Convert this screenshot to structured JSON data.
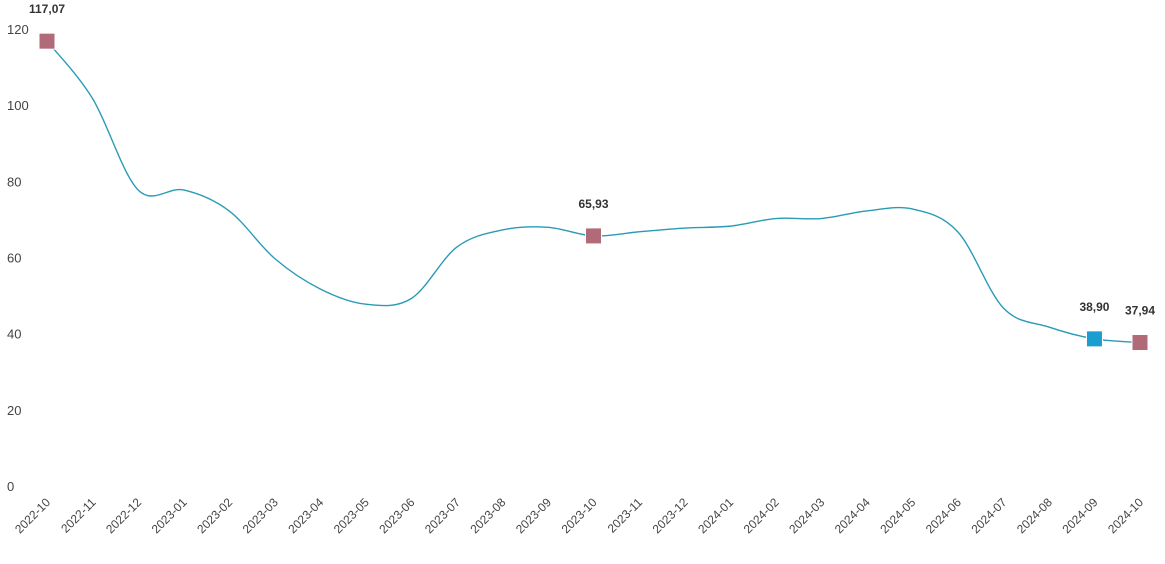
{
  "chart_data": {
    "type": "line",
    "title": "",
    "xlabel": "",
    "ylabel": "",
    "ylim": [
      0,
      120
    ],
    "yticks": [
      0,
      20,
      40,
      60,
      80,
      100,
      120
    ],
    "grid": false,
    "categories": [
      "2022-10",
      "2022-11",
      "2022-12",
      "2023-01",
      "2023-02",
      "2023-03",
      "2023-04",
      "2023-05",
      "2023-06",
      "2023-07",
      "2023-08",
      "2023-09",
      "2023-10",
      "2023-11",
      "2023-12",
      "2024-01",
      "2024-02",
      "2024-03",
      "2024-04",
      "2024-05",
      "2024-06",
      "2024-07",
      "2024-08",
      "2024-09",
      "2024-10"
    ],
    "series": [
      {
        "values": [
          117.07,
          102,
          78,
          78,
          72.5,
          60,
          52,
          48,
          49.5,
          63,
          67.5,
          68.2,
          65.93,
          67,
          68,
          68.5,
          70.5,
          70.5,
          72.5,
          73,
          67,
          47,
          42,
          38.9,
          37.94
        ],
        "color": "#2a9bb5"
      }
    ],
    "markers": [
      {
        "index": 0,
        "label": "117,07",
        "color": "#b06a78"
      },
      {
        "index": 12,
        "label": "65,93",
        "color": "#b06a78"
      },
      {
        "index": 23,
        "label": "38,90",
        "color": "#1a9dd0"
      },
      {
        "index": 24,
        "label": "37,94",
        "color": "#b06a78"
      }
    ]
  }
}
